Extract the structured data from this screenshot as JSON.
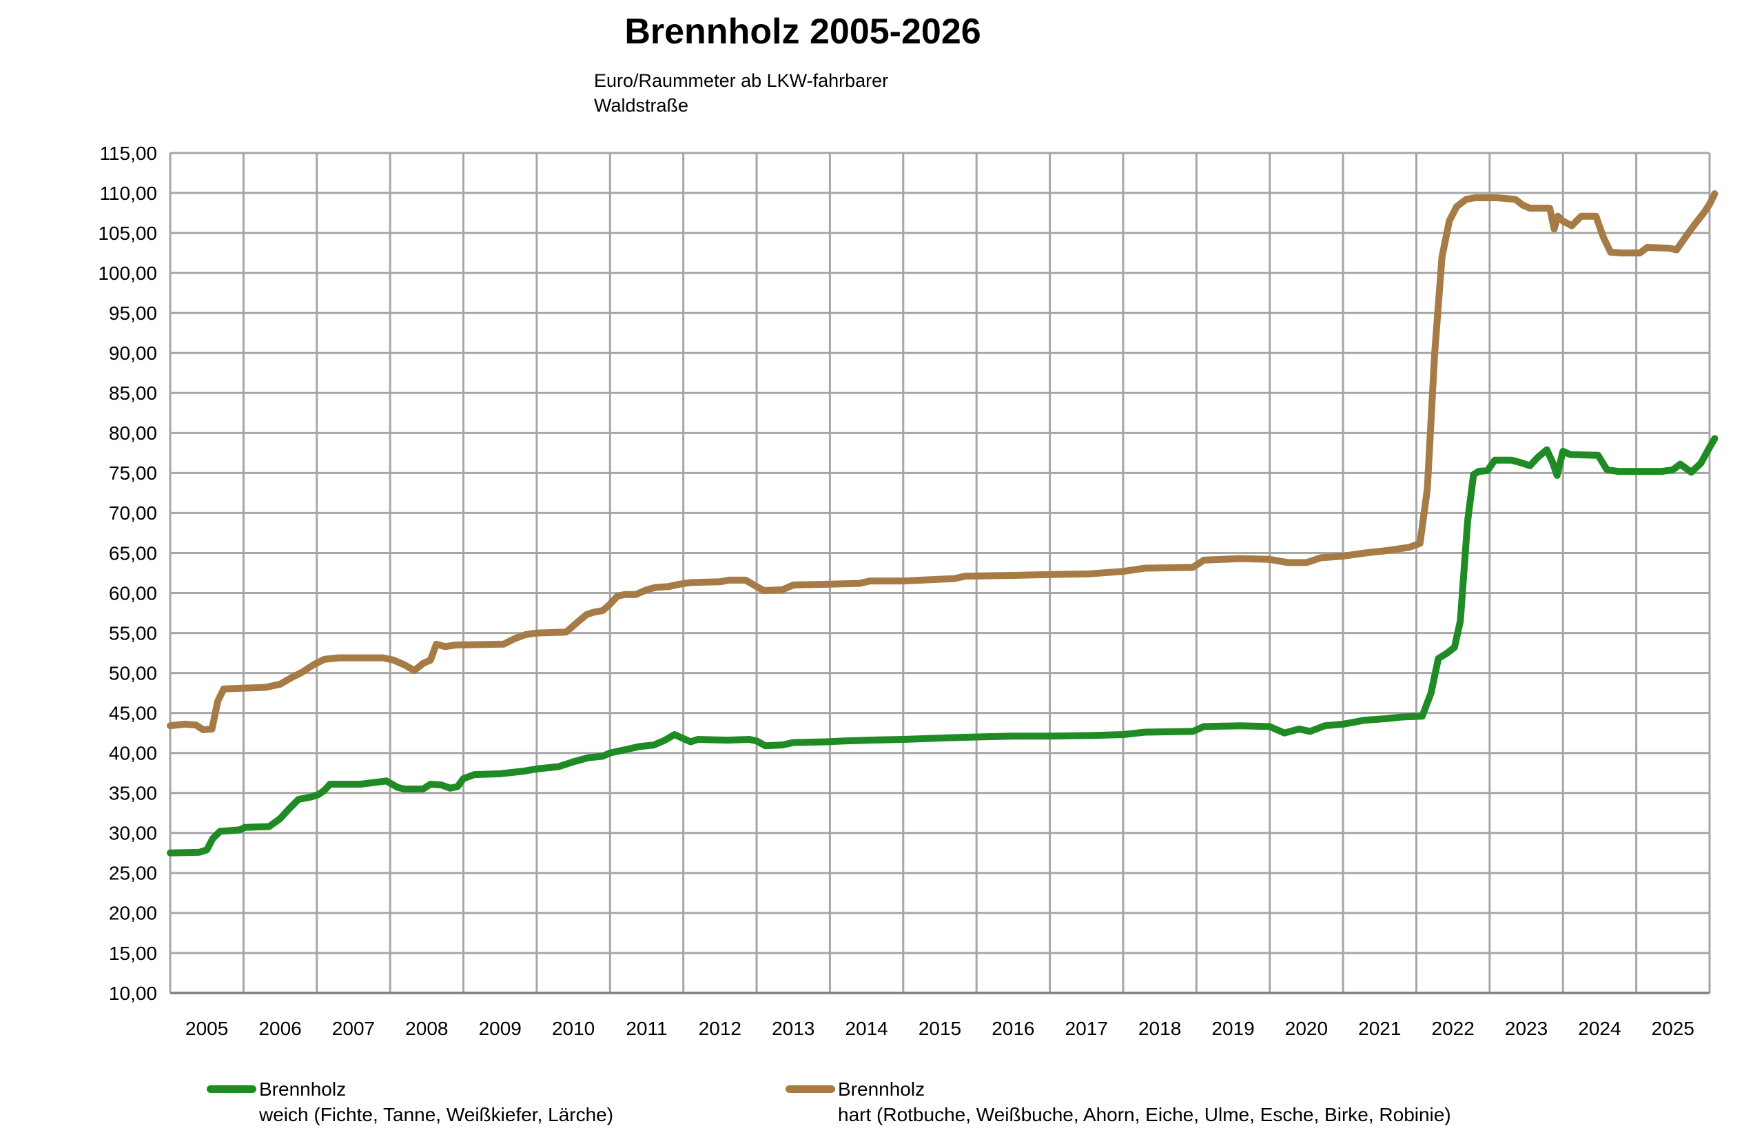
{
  "title": "Brennholz 2005-2026",
  "subtitle": {
    "line1": "Euro/Raummeter ab LKW-fahrbarer",
    "line2": "Waldstraße"
  },
  "chart_data": {
    "type": "line",
    "title": "Brennholz 2005-2026",
    "subtitle": "Euro/Raummeter ab LKW-fahrbarer Waldstraße",
    "xlabel": "",
    "ylabel": "",
    "xlim": [
      2005,
      2026
    ],
    "ylim": [
      10,
      115
    ],
    "y_tick_step": 5,
    "grid": true,
    "grid_color": "#A6A6A6",
    "axis_color": "#7F7F7F",
    "background": "#FFFFFF",
    "legend_position": "bottom",
    "y_tick_labels": [
      "115,00",
      "110,00",
      "105,00",
      "100,00",
      "95,00",
      "90,00",
      "85,00",
      "80,00",
      "75,00",
      "70,00",
      "65,00",
      "60,00",
      "55,00",
      "50,00",
      "45,00",
      "40,00",
      "35,00",
      "30,00",
      "25,00",
      "20,00",
      "15,00",
      "10,00"
    ],
    "x_tick_labels": [
      "2005",
      "2006",
      "2007",
      "2008",
      "2009",
      "2010",
      "2011",
      "2012",
      "2013",
      "2014",
      "2015",
      "2016",
      "2017",
      "2018",
      "2019",
      "2020",
      "2021",
      "2022",
      "2023",
      "2024",
      "2025"
    ],
    "series": [
      {
        "name": "Brennholz weich (Fichte, Tanne, Weißkiefer, Lärche)",
        "legend_line1": "Brennholz",
        "legend_line2": "weich (Fichte, Tanne, Weißkiefer, Lärche)",
        "color": "#1E8B24",
        "line_width": 10,
        "points": [
          [
            2005.0,
            27.5
          ],
          [
            2005.4,
            27.6
          ],
          [
            2005.5,
            27.9
          ],
          [
            2005.58,
            29.3
          ],
          [
            2005.68,
            30.2
          ],
          [
            2005.95,
            30.4
          ],
          [
            2006.02,
            30.7
          ],
          [
            2006.35,
            30.8
          ],
          [
            2006.5,
            31.8
          ],
          [
            2006.62,
            33.0
          ],
          [
            2006.75,
            34.2
          ],
          [
            2006.92,
            34.5
          ],
          [
            2007.02,
            34.8
          ],
          [
            2007.1,
            35.3
          ],
          [
            2007.18,
            36.1
          ],
          [
            2007.6,
            36.1
          ],
          [
            2007.95,
            36.5
          ],
          [
            2008.1,
            35.7
          ],
          [
            2008.2,
            35.5
          ],
          [
            2008.45,
            35.5
          ],
          [
            2008.55,
            36.1
          ],
          [
            2008.7,
            36.0
          ],
          [
            2008.82,
            35.6
          ],
          [
            2008.92,
            35.8
          ],
          [
            2009.0,
            36.8
          ],
          [
            2009.15,
            37.3
          ],
          [
            2009.5,
            37.4
          ],
          [
            2009.8,
            37.7
          ],
          [
            2010.0,
            38.0
          ],
          [
            2010.3,
            38.3
          ],
          [
            2010.5,
            38.9
          ],
          [
            2010.7,
            39.4
          ],
          [
            2010.9,
            39.6
          ],
          [
            2011.0,
            40.0
          ],
          [
            2011.2,
            40.4
          ],
          [
            2011.4,
            40.8
          ],
          [
            2011.6,
            41.0
          ],
          [
            2011.75,
            41.6
          ],
          [
            2011.88,
            42.3
          ],
          [
            2012.0,
            41.8
          ],
          [
            2012.1,
            41.4
          ],
          [
            2012.2,
            41.7
          ],
          [
            2012.6,
            41.6
          ],
          [
            2012.9,
            41.7
          ],
          [
            2013.0,
            41.5
          ],
          [
            2013.12,
            40.9
          ],
          [
            2013.35,
            41.0
          ],
          [
            2013.5,
            41.3
          ],
          [
            2013.95,
            41.4
          ],
          [
            2014.2,
            41.5
          ],
          [
            2014.55,
            41.6
          ],
          [
            2015.0,
            41.7
          ],
          [
            2015.6,
            41.9
          ],
          [
            2016.0,
            42.0
          ],
          [
            2016.5,
            42.1
          ],
          [
            2017.0,
            42.1
          ],
          [
            2017.6,
            42.2
          ],
          [
            2018.0,
            42.3
          ],
          [
            2018.3,
            42.6
          ],
          [
            2018.95,
            42.7
          ],
          [
            2019.1,
            43.3
          ],
          [
            2019.6,
            43.4
          ],
          [
            2020.0,
            43.3
          ],
          [
            2020.2,
            42.5
          ],
          [
            2020.4,
            43.0
          ],
          [
            2020.55,
            42.7
          ],
          [
            2020.75,
            43.4
          ],
          [
            2021.0,
            43.6
          ],
          [
            2021.3,
            44.1
          ],
          [
            2021.6,
            44.3
          ],
          [
            2021.8,
            44.5
          ],
          [
            2022.08,
            44.6
          ],
          [
            2022.2,
            47.5
          ],
          [
            2022.3,
            51.8
          ],
          [
            2022.42,
            52.5
          ],
          [
            2022.52,
            53.2
          ],
          [
            2022.6,
            56.5
          ],
          [
            2022.7,
            69.0
          ],
          [
            2022.78,
            74.8
          ],
          [
            2022.85,
            75.2
          ],
          [
            2022.97,
            75.3
          ],
          [
            2023.07,
            76.6
          ],
          [
            2023.3,
            76.6
          ],
          [
            2023.42,
            76.3
          ],
          [
            2023.55,
            75.9
          ],
          [
            2023.65,
            76.9
          ],
          [
            2023.78,
            77.9
          ],
          [
            2023.86,
            76.3
          ],
          [
            2023.92,
            74.7
          ],
          [
            2024.0,
            77.7
          ],
          [
            2024.1,
            77.3
          ],
          [
            2024.48,
            77.2
          ],
          [
            2024.6,
            75.4
          ],
          [
            2024.75,
            75.2
          ],
          [
            2025.35,
            75.2
          ],
          [
            2025.5,
            75.4
          ],
          [
            2025.6,
            76.1
          ],
          [
            2025.75,
            75.1
          ],
          [
            2025.88,
            76.2
          ],
          [
            2026.0,
            78.2
          ],
          [
            2026.07,
            79.3
          ]
        ]
      },
      {
        "name": "Brennholz hart (Rotbuche, Weißbuche, Ahorn, Eiche, Ulme, Esche, Birke, Robinie)",
        "legend_line1": "Brennholz",
        "legend_line2": "hart (Rotbuche, Weißbuche, Ahorn, Eiche, Ulme, Esche, Birke, Robinie)",
        "color": "#A67B45",
        "line_width": 10,
        "points": [
          [
            2005.0,
            43.4
          ],
          [
            2005.2,
            43.6
          ],
          [
            2005.35,
            43.5
          ],
          [
            2005.45,
            42.9
          ],
          [
            2005.57,
            43.0
          ],
          [
            2005.65,
            46.5
          ],
          [
            2005.73,
            48.0
          ],
          [
            2006.3,
            48.2
          ],
          [
            2006.5,
            48.6
          ],
          [
            2006.65,
            49.4
          ],
          [
            2006.8,
            50.1
          ],
          [
            2006.95,
            51.0
          ],
          [
            2007.1,
            51.7
          ],
          [
            2007.3,
            51.9
          ],
          [
            2007.9,
            51.9
          ],
          [
            2008.05,
            51.6
          ],
          [
            2008.2,
            51.0
          ],
          [
            2008.33,
            50.3
          ],
          [
            2008.45,
            51.2
          ],
          [
            2008.55,
            51.6
          ],
          [
            2008.63,
            53.6
          ],
          [
            2008.75,
            53.3
          ],
          [
            2008.9,
            53.5
          ],
          [
            2009.55,
            53.6
          ],
          [
            2009.7,
            54.3
          ],
          [
            2009.85,
            54.8
          ],
          [
            2010.0,
            55.0
          ],
          [
            2010.4,
            55.1
          ],
          [
            2010.55,
            56.3
          ],
          [
            2010.68,
            57.3
          ],
          [
            2010.78,
            57.6
          ],
          [
            2010.9,
            57.8
          ],
          [
            2011.0,
            58.6
          ],
          [
            2011.1,
            59.6
          ],
          [
            2011.2,
            59.8
          ],
          [
            2011.35,
            59.8
          ],
          [
            2011.5,
            60.4
          ],
          [
            2011.62,
            60.7
          ],
          [
            2011.8,
            60.8
          ],
          [
            2011.95,
            61.1
          ],
          [
            2012.1,
            61.3
          ],
          [
            2012.5,
            61.4
          ],
          [
            2012.62,
            61.6
          ],
          [
            2012.85,
            61.6
          ],
          [
            2013.0,
            60.8
          ],
          [
            2013.1,
            60.3
          ],
          [
            2013.35,
            60.4
          ],
          [
            2013.5,
            61.0
          ],
          [
            2014.0,
            61.1
          ],
          [
            2014.4,
            61.2
          ],
          [
            2014.55,
            61.5
          ],
          [
            2015.0,
            61.5
          ],
          [
            2015.7,
            61.8
          ],
          [
            2015.85,
            62.1
          ],
          [
            2016.5,
            62.2
          ],
          [
            2017.0,
            62.3
          ],
          [
            2017.55,
            62.4
          ],
          [
            2018.0,
            62.7
          ],
          [
            2018.3,
            63.1
          ],
          [
            2018.95,
            63.2
          ],
          [
            2019.1,
            64.1
          ],
          [
            2019.6,
            64.3
          ],
          [
            2020.0,
            64.2
          ],
          [
            2020.25,
            63.8
          ],
          [
            2020.5,
            63.8
          ],
          [
            2020.7,
            64.4
          ],
          [
            2021.0,
            64.6
          ],
          [
            2021.3,
            65.0
          ],
          [
            2021.6,
            65.3
          ],
          [
            2021.9,
            65.7
          ],
          [
            2022.05,
            66.2
          ],
          [
            2022.15,
            73.0
          ],
          [
            2022.25,
            90.0
          ],
          [
            2022.35,
            102.0
          ],
          [
            2022.45,
            106.5
          ],
          [
            2022.55,
            108.3
          ],
          [
            2022.68,
            109.2
          ],
          [
            2022.8,
            109.4
          ],
          [
            2023.1,
            109.4
          ],
          [
            2023.35,
            109.2
          ],
          [
            2023.45,
            108.5
          ],
          [
            2023.55,
            108.1
          ],
          [
            2023.82,
            108.1
          ],
          [
            2023.88,
            105.5
          ],
          [
            2023.93,
            107.1
          ],
          [
            2024.0,
            106.5
          ],
          [
            2024.12,
            105.9
          ],
          [
            2024.25,
            107.1
          ],
          [
            2024.45,
            107.1
          ],
          [
            2024.55,
            104.5
          ],
          [
            2024.65,
            102.6
          ],
          [
            2024.8,
            102.5
          ],
          [
            2025.05,
            102.5
          ],
          [
            2025.15,
            103.2
          ],
          [
            2025.45,
            103.1
          ],
          [
            2025.55,
            102.9
          ],
          [
            2025.68,
            104.6
          ],
          [
            2025.8,
            106.1
          ],
          [
            2025.92,
            107.5
          ],
          [
            2026.0,
            108.6
          ],
          [
            2026.07,
            109.9
          ]
        ]
      }
    ]
  }
}
